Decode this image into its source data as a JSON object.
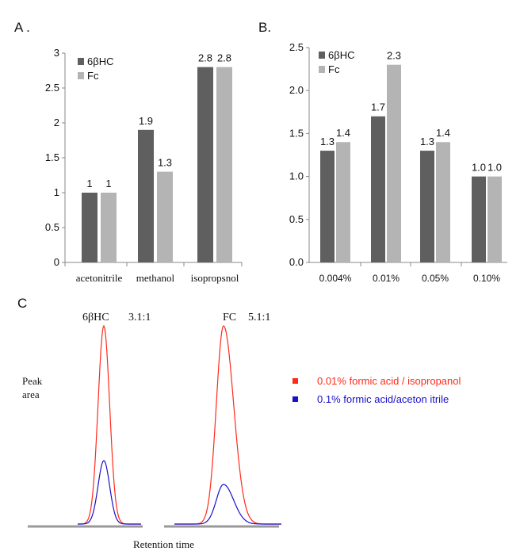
{
  "panel_labels": {
    "a": "A .",
    "b": "B.",
    "c": "C"
  },
  "colors": {
    "dark": "#5f5f5f",
    "light": "#b4b4b4",
    "axis": "#888888",
    "red": "#ff2a1a",
    "blue": "#1a10c8",
    "baseline": "#9a9a9a"
  },
  "chart_data": [
    {
      "id": "A",
      "type": "bar",
      "categories": [
        "acetonitrile",
        "methanol",
        "isopropsnol"
      ],
      "series": [
        {
          "name": "6βHC",
          "values": [
            1,
            1.9,
            2.8
          ]
        },
        {
          "name": "Fc",
          "values": [
            1,
            1.3,
            2.8
          ]
        }
      ],
      "data_labels": [
        [
          "1",
          "1.9",
          "2.8"
        ],
        [
          "1",
          "1.3",
          "2.8"
        ]
      ],
      "yticks": [
        "0",
        "0.5",
        "1",
        "1.5",
        "2",
        "2.5",
        "3"
      ],
      "ylim": [
        0,
        3
      ],
      "legend": "top-left",
      "grid": false
    },
    {
      "id": "B",
      "type": "bar",
      "categories": [
        "0.004%",
        "0.01%",
        "0.05%",
        "0.10%"
      ],
      "series": [
        {
          "name": "6βHC",
          "values": [
            1.3,
            1.7,
            1.3,
            1.0
          ]
        },
        {
          "name": "Fc",
          "values": [
            1.4,
            2.3,
            1.4,
            1.0
          ]
        }
      ],
      "data_labels": [
        [
          "1.3",
          "1.7",
          "1.3",
          "1.0"
        ],
        [
          "1.4",
          "2.3",
          "1.4",
          "1.0"
        ]
      ],
      "yticks": [
        "0.0",
        "0.5",
        "1.0",
        "1.5",
        "2.0",
        "2.5"
      ],
      "ylim": [
        0,
        2.5
      ],
      "legend": "top-left",
      "grid": false
    },
    {
      "id": "C",
      "type": "line",
      "ylabel_lines": [
        "Peak",
        "area"
      ],
      "xlabel": "Retention time",
      "peak_annotations": [
        {
          "name": "6βHC",
          "ratio": "3.1:1"
        },
        {
          "name": "FC",
          "ratio": "5.1:1"
        }
      ],
      "series": [
        {
          "name": "0.01% formic acid / isopropanol",
          "color": "#ff2a1a",
          "relative_peaks": [
            1.0,
            1.0
          ]
        },
        {
          "name": "0.1% formic acid/aceton itrile",
          "color": "#1a10c8",
          "relative_peaks": [
            0.32,
            0.2
          ]
        }
      ],
      "legend": "right"
    }
  ]
}
